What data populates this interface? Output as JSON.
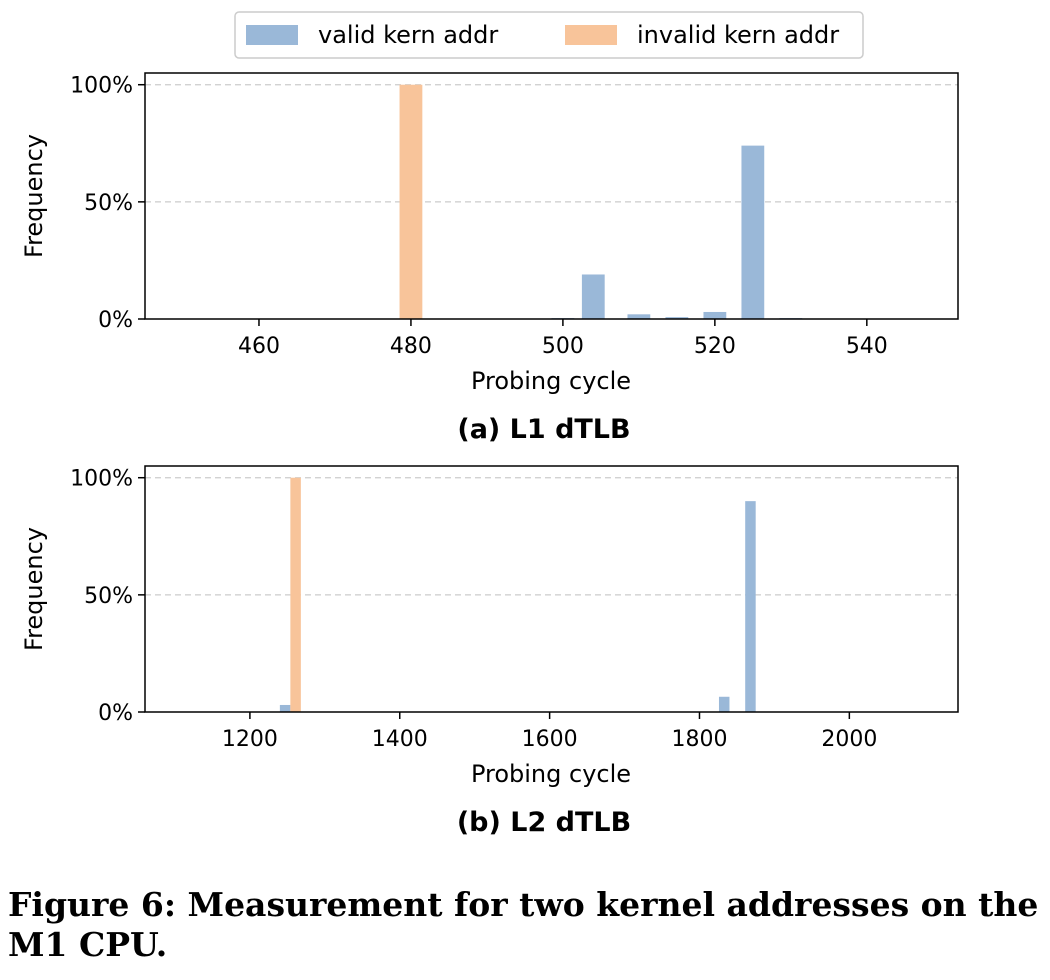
{
  "legend": [
    "valid kern addr",
    "invalid kern addr"
  ],
  "caption": "Figure 6: Measurement for two kernel addresses on the M1 CPU.",
  "colors": {
    "valid": "#9ab8d8",
    "invalid": "#f8c49a",
    "grid": "#cccccc"
  },
  "chart_data": [
    {
      "type": "bar",
      "title": "(a) L1 dTLB",
      "xlabel": "Probing cycle",
      "ylabel": "Frequency",
      "xlim": [
        445,
        552
      ],
      "ylim": [
        0,
        1.05
      ],
      "xticks": [
        460,
        480,
        500,
        520,
        540
      ],
      "yticks": [
        0,
        0.5,
        1.0
      ],
      "ytick_labels": [
        "0%",
        "50%",
        "100%"
      ],
      "bar_width": 3,
      "grid": "horizontal dashed",
      "series": [
        {
          "name": "valid kern addr",
          "x": [
            500,
            504,
            510,
            515,
            520,
            525,
            530
          ],
          "values": [
            0.004,
            0.19,
            0.02,
            0.008,
            0.03,
            0.74,
            0.004
          ]
        },
        {
          "name": "invalid kern addr",
          "x": [
            480
          ],
          "values": [
            1.0
          ]
        }
      ]
    },
    {
      "type": "bar",
      "title": "(b) L2 dTLB",
      "xlabel": "Probing cycle",
      "ylabel": "Frequency",
      "xlim": [
        1060,
        2145
      ],
      "ylim": [
        0,
        1.05
      ],
      "xticks": [
        1200,
        1400,
        1600,
        1800,
        2000
      ],
      "yticks": [
        0,
        0.5,
        1.0
      ],
      "ytick_labels": [
        "0%",
        "50%",
        "100%"
      ],
      "bar_width": 14,
      "grid": "horizontal dashed",
      "series": [
        {
          "name": "valid kern addr",
          "x": [
            1247,
            1833,
            1868
          ],
          "values": [
            0.03,
            0.065,
            0.9
          ]
        },
        {
          "name": "invalid kern addr",
          "x": [
            1261
          ],
          "values": [
            1.0
          ]
        }
      ]
    }
  ]
}
